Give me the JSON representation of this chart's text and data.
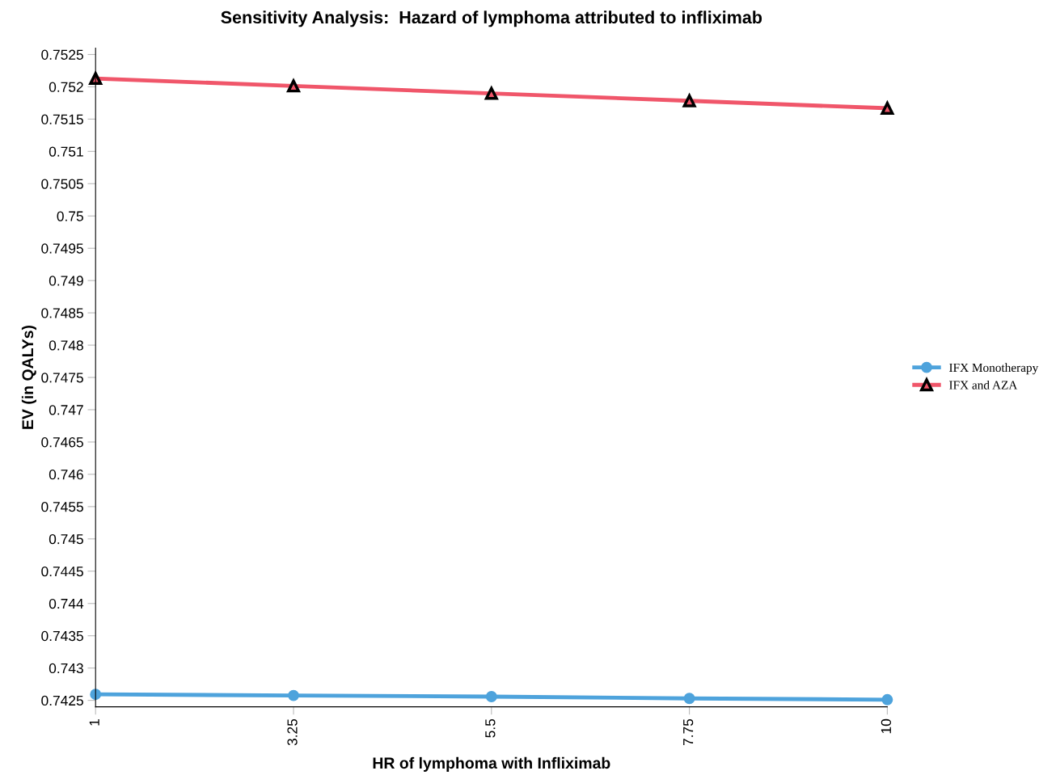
{
  "chart_data": {
    "type": "line",
    "title": "Sensitivity Analysis:  Hazard of lymphoma attributed to infliximab",
    "xlabel": "HR of lymphoma with Infliximab",
    "ylabel": "EV (in QALYs)",
    "x": [
      1,
      3.25,
      5.5,
      7.75,
      10
    ],
    "series": [
      {
        "name": "IFX Monotherapy",
        "color": "#4ea3dc",
        "marker": "circle",
        "values": [
          0.742593,
          0.742575,
          0.742558,
          0.74253,
          0.74251
        ]
      },
      {
        "name": "IFX and AZA",
        "color": "#f0566a",
        "marker": "triangle",
        "values": [
          0.752129,
          0.752013,
          0.751898,
          0.751783,
          0.751668
        ]
      }
    ],
    "xlim": [
      1,
      10
    ],
    "xticks": [
      1,
      3.25,
      5.5,
      7.75,
      10
    ],
    "ylim": [
      0.7424,
      0.7526
    ],
    "yticks": [
      0.7425,
      0.743,
      0.7435,
      0.744,
      0.7445,
      0.745,
      0.7455,
      0.746,
      0.7465,
      0.747,
      0.7475,
      0.748,
      0.7485,
      0.749,
      0.7495,
      0.75,
      0.7505,
      0.751,
      0.7515,
      0.752,
      0.7525
    ],
    "grid": false,
    "legend": "right",
    "line_style": "solid"
  }
}
